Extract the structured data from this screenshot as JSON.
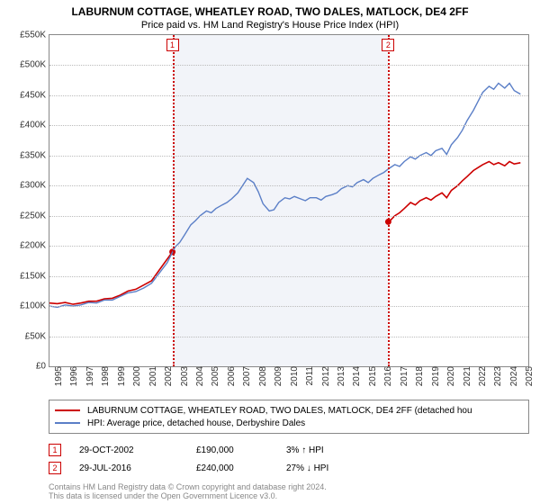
{
  "title": "LABURNUM COTTAGE, WHEATLEY ROAD, TWO DALES, MATLOCK, DE4 2FF",
  "subtitle": "Price paid vs. HM Land Registry's House Price Index (HPI)",
  "chart": {
    "type": "line",
    "background_color": "#ffffff",
    "plot_band_color": "#f2f4f9",
    "grid_color": "#bbbbbb",
    "border_color": "#888888",
    "x_domain": [
      1995,
      2025.5
    ],
    "y_domain": [
      0,
      550
    ],
    "y_ticks": [
      0,
      50,
      100,
      150,
      200,
      250,
      300,
      350,
      400,
      450,
      500,
      550
    ],
    "y_tick_labels": [
      "£0",
      "£50K",
      "£100K",
      "£150K",
      "£200K",
      "£250K",
      "£300K",
      "£350K",
      "£400K",
      "£450K",
      "£500K",
      "£550K"
    ],
    "x_ticks": [
      1995,
      1996,
      1997,
      1998,
      1999,
      2000,
      2001,
      2002,
      2003,
      2004,
      2005,
      2006,
      2007,
      2008,
      2009,
      2010,
      2011,
      2012,
      2013,
      2014,
      2015,
      2016,
      2017,
      2018,
      2019,
      2020,
      2021,
      2022,
      2023,
      2024,
      2025
    ],
    "tick_label_fontsize": 10,
    "plot_band": {
      "from": 2002.83,
      "to": 2016.58
    },
    "vlines": [
      {
        "x": 2002.83,
        "label": "1"
      },
      {
        "x": 2016.58,
        "label": "2"
      }
    ],
    "series": [
      {
        "name": "price_paid",
        "color": "#cc0000",
        "width": 1.6,
        "segments": [
          [
            [
              1995,
              105
            ],
            [
              1995.5,
              104
            ],
            [
              1996,
              106
            ],
            [
              1996.5,
              103
            ],
            [
              1997,
              105
            ],
            [
              1997.5,
              108
            ],
            [
              1998,
              108
            ],
            [
              1998.5,
              112
            ],
            [
              1999,
              113
            ],
            [
              1999.5,
              118
            ],
            [
              2000,
              125
            ],
            [
              2000.5,
              128
            ],
            [
              2001,
              135
            ],
            [
              2001.5,
              142
            ],
            [
              2002,
              160
            ],
            [
              2002.5,
              178
            ],
            [
              2002.83,
              190
            ]
          ],
          [
            [
              2016.58,
              240
            ],
            [
              2016.7,
              242
            ],
            [
              2017,
              250
            ],
            [
              2017.3,
              255
            ],
            [
              2017.6,
              262
            ],
            [
              2018,
              272
            ],
            [
              2018.3,
              268
            ],
            [
              2018.6,
              275
            ],
            [
              2019,
              280
            ],
            [
              2019.3,
              276
            ],
            [
              2019.6,
              282
            ],
            [
              2020,
              288
            ],
            [
              2020.3,
              280
            ],
            [
              2020.6,
              292
            ],
            [
              2021,
              300
            ],
            [
              2021.3,
              308
            ],
            [
              2021.6,
              315
            ],
            [
              2022,
              325
            ],
            [
              2022.3,
              330
            ],
            [
              2022.6,
              335
            ],
            [
              2023,
              340
            ],
            [
              2023.3,
              335
            ],
            [
              2023.6,
              338
            ],
            [
              2024,
              333
            ],
            [
              2024.3,
              340
            ],
            [
              2024.6,
              336
            ],
            [
              2025,
              338
            ]
          ]
        ],
        "markers": [
          {
            "x": 2002.83,
            "y": 190
          },
          {
            "x": 2016.58,
            "y": 240
          }
        ]
      },
      {
        "name": "hpi",
        "color": "#5b7fc7",
        "width": 1.4,
        "segments": [
          [
            [
              1995,
              100
            ],
            [
              1995.5,
              98
            ],
            [
              1996,
              102
            ],
            [
              1996.5,
              100
            ],
            [
              1997,
              102
            ],
            [
              1997.5,
              106
            ],
            [
              1998,
              105
            ],
            [
              1998.5,
              110
            ],
            [
              1999,
              110
            ],
            [
              1999.5,
              116
            ],
            [
              2000,
              122
            ],
            [
              2000.5,
              124
            ],
            [
              2001,
              130
            ],
            [
              2001.5,
              138
            ],
            [
              2002,
              155
            ],
            [
              2002.5,
              172
            ],
            [
              2003,
              198
            ],
            [
              2003.3,
              206
            ],
            [
              2003.6,
              218
            ],
            [
              2004,
              235
            ],
            [
              2004.3,
              242
            ],
            [
              2004.6,
              250
            ],
            [
              2005,
              258
            ],
            [
              2005.3,
              255
            ],
            [
              2005.6,
              262
            ],
            [
              2006,
              268
            ],
            [
              2006.3,
              272
            ],
            [
              2006.6,
              278
            ],
            [
              2007,
              288
            ],
            [
              2007.3,
              300
            ],
            [
              2007.6,
              312
            ],
            [
              2008,
              305
            ],
            [
              2008.3,
              290
            ],
            [
              2008.6,
              270
            ],
            [
              2009,
              258
            ],
            [
              2009.3,
              260
            ],
            [
              2009.6,
              272
            ],
            [
              2010,
              280
            ],
            [
              2010.3,
              278
            ],
            [
              2010.6,
              282
            ],
            [
              2011,
              278
            ],
            [
              2011.3,
              275
            ],
            [
              2011.6,
              280
            ],
            [
              2012,
              280
            ],
            [
              2012.3,
              276
            ],
            [
              2012.6,
              282
            ],
            [
              2013,
              285
            ],
            [
              2013.3,
              288
            ],
            [
              2013.6,
              295
            ],
            [
              2014,
              300
            ],
            [
              2014.3,
              298
            ],
            [
              2014.6,
              305
            ],
            [
              2015,
              310
            ],
            [
              2015.3,
              305
            ],
            [
              2015.6,
              312
            ],
            [
              2016,
              318
            ],
            [
              2016.3,
              322
            ],
            [
              2016.6,
              328
            ],
            [
              2017,
              335
            ],
            [
              2017.3,
              332
            ],
            [
              2017.6,
              340
            ],
            [
              2018,
              348
            ],
            [
              2018.3,
              344
            ],
            [
              2018.6,
              350
            ],
            [
              2019,
              355
            ],
            [
              2019.3,
              350
            ],
            [
              2019.6,
              358
            ],
            [
              2020,
              362
            ],
            [
              2020.3,
              352
            ],
            [
              2020.6,
              368
            ],
            [
              2021,
              380
            ],
            [
              2021.3,
              392
            ],
            [
              2021.6,
              408
            ],
            [
              2022,
              425
            ],
            [
              2022.3,
              440
            ],
            [
              2022.6,
              455
            ],
            [
              2023,
              465
            ],
            [
              2023.3,
              460
            ],
            [
              2023.6,
              470
            ],
            [
              2024,
              462
            ],
            [
              2024.3,
              470
            ],
            [
              2024.6,
              458
            ],
            [
              2025,
              452
            ]
          ]
        ]
      }
    ]
  },
  "legend": {
    "items": [
      {
        "color": "#cc0000",
        "label": "LABURNUM COTTAGE, WHEATLEY ROAD, TWO DALES, MATLOCK, DE4 2FF (detached hou"
      },
      {
        "color": "#5b7fc7",
        "label": "HPI: Average price, detached house, Derbyshire Dales"
      }
    ]
  },
  "sales": [
    {
      "marker": "1",
      "date": "29-OCT-2002",
      "price": "£190,000",
      "pct": "3% ↑ HPI"
    },
    {
      "marker": "2",
      "date": "29-JUL-2016",
      "price": "£240,000",
      "pct": "27% ↓ HPI"
    }
  ],
  "footer": {
    "line1": "Contains HM Land Registry data © Crown copyright and database right 2024.",
    "line2": "This data is licensed under the Open Government Licence v3.0."
  }
}
